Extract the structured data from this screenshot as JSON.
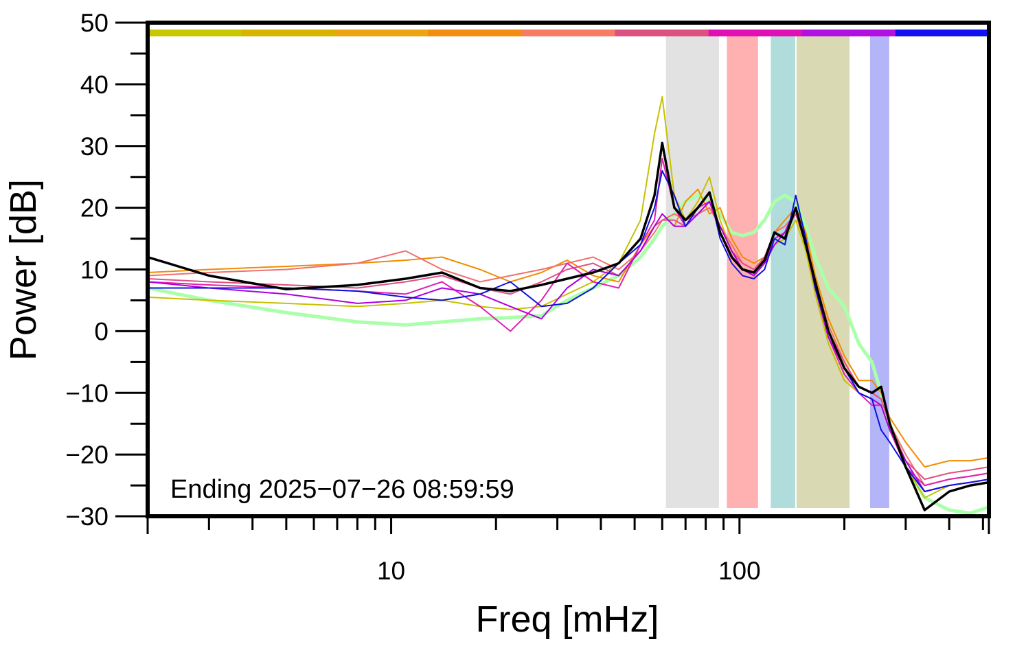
{
  "chart_data": {
    "type": "line",
    "xlabel": "Freq [mHz]",
    "ylabel": "Power [dB]",
    "annotation": "Ending 2025−07−26 08:59:59",
    "xscale": "log",
    "xlim": [
      2,
      520
    ],
    "ylim": [
      -30,
      50
    ],
    "xticks": [
      10,
      100
    ],
    "x_minor_ticks": [
      3,
      4,
      5,
      6,
      7,
      8,
      9,
      20,
      30,
      40,
      50,
      60,
      70,
      80,
      90,
      200,
      300,
      400,
      500
    ],
    "yticks": [
      {
        "value": -30,
        "label": "−30"
      },
      {
        "value": -20,
        "label": "−20"
      },
      {
        "value": -10,
        "label": "−10"
      },
      0,
      10,
      20,
      30,
      40,
      50
    ],
    "y_minor_ticks": [
      -25,
      -15,
      -5,
      5,
      15,
      25,
      35,
      45
    ],
    "top_bar_colors": [
      "#c8c800",
      "#d6b400",
      "#eea410",
      "#f48c10",
      "#f87c64",
      "#dc5082",
      "#e010b4",
      "#b010e0",
      "#1010f0"
    ],
    "bands": [
      {
        "range": [
          61.5,
          87.3
        ],
        "color": "#e2e2e2"
      },
      {
        "range": [
          92,
          113
        ],
        "color": "#ffb0b0"
      },
      {
        "range": [
          123,
          144.5
        ],
        "color": "#b0dcdc"
      },
      {
        "range": [
          145.8,
          207
        ],
        "color": "#d9d9b4"
      },
      {
        "range": [
          237,
          269
        ],
        "color": "#b4b4f8"
      }
    ],
    "x": [
      2,
      3,
      5,
      8,
      11,
      14,
      18,
      22,
      27,
      32,
      38,
      45,
      52,
      57,
      60,
      65,
      70,
      76,
      82,
      88,
      95,
      102,
      110,
      118,
      126,
      135,
      145,
      155,
      165,
      180,
      200,
      220,
      240,
      255,
      270,
      300,
      340,
      400,
      460,
      520
    ],
    "series": [
      {
        "color": "#aaffaa",
        "width": 5,
        "values": [
          7,
          5,
          3,
          1.5,
          1,
          1.5,
          2,
          2.2,
          2.5,
          5,
          7,
          9,
          12,
          15,
          17,
          19,
          21,
          22,
          21,
          19,
          16,
          15.5,
          16,
          18,
          21,
          22,
          21,
          17,
          12,
          7,
          4,
          -2,
          -5,
          -10,
          -15,
          -22,
          -27,
          -29,
          -29.5,
          -28.5
        ]
      },
      {
        "color": "#f08c00",
        "width": 2,
        "values": [
          9.5,
          10,
          10.5,
          11,
          11.5,
          12,
          10,
          8,
          9.5,
          11.5,
          9,
          8,
          14,
          17,
          19,
          17,
          21,
          23,
          19,
          20,
          15,
          12,
          11,
          12,
          16,
          18,
          20,
          16,
          9,
          2,
          -4,
          -8,
          -8,
          -10,
          -14,
          -18,
          -22,
          -21,
          -21,
          -20.5
        ]
      },
      {
        "color": "#c8c000",
        "width": 2,
        "values": [
          5.5,
          5,
          4.5,
          4,
          4.5,
          5,
          4,
          3.5,
          4,
          6,
          8,
          11,
          18,
          32,
          38,
          22,
          18,
          21,
          25,
          18,
          13,
          10,
          9,
          11,
          14,
          15,
          18,
          13,
          6,
          -2,
          -8,
          -10,
          -11,
          -12,
          -16,
          -22,
          -27,
          -25,
          -24.5,
          -24
        ]
      },
      {
        "color": "#f07070",
        "width": 2,
        "values": [
          9,
          9.5,
          10,
          11,
          13,
          10,
          8,
          9,
          10,
          11,
          12,
          10,
          13,
          16,
          18,
          19,
          18,
          19,
          20,
          17,
          14,
          11,
          10,
          12,
          16,
          17,
          19,
          15,
          8,
          1,
          -5,
          -9,
          -10,
          -11,
          -15,
          -20,
          -25,
          -24,
          -23.5,
          -23
        ]
      },
      {
        "color": "#e05080",
        "width": 2,
        "values": [
          8.5,
          8,
          7.5,
          7,
          8,
          9,
          7,
          6,
          8,
          10,
          11,
          9,
          13,
          17,
          18,
          18,
          17,
          19,
          21,
          17,
          13,
          11,
          10,
          12,
          15,
          16,
          19,
          14,
          8,
          0,
          -5,
          -9,
          -10,
          -11,
          -15,
          -21,
          -24,
          -23,
          -22.5,
          -22
        ]
      },
      {
        "color": "#e020b0",
        "width": 2,
        "values": [
          8,
          7.5,
          7,
          6.5,
          6,
          8,
          4,
          0,
          5,
          11,
          8,
          7,
          14,
          18,
          28,
          20,
          17,
          20,
          21,
          16,
          12,
          10,
          9,
          11,
          15,
          16,
          20,
          14,
          7,
          -1,
          -7,
          -10,
          -12,
          -12,
          -16,
          -22,
          -25,
          -24,
          -23.5,
          -23
        ]
      },
      {
        "color": "#b000e0",
        "width": 2,
        "values": [
          8,
          7,
          6,
          4.5,
          5,
          7,
          6,
          4,
          2,
          7,
          10,
          9,
          13,
          17,
          19,
          17,
          17,
          19,
          21,
          17,
          13,
          10,
          9,
          11,
          14,
          16,
          20,
          14,
          7,
          -1,
          -6,
          -10,
          -11,
          -12,
          -16,
          -21,
          -26,
          -25,
          -24.5,
          -24
        ]
      },
      {
        "color": "#1010e0",
        "width": 2,
        "values": [
          7,
          7,
          7,
          6.5,
          5.5,
          5,
          6,
          8,
          4,
          4.5,
          7,
          11,
          14,
          20,
          26,
          22,
          17,
          20,
          22.5,
          15,
          11,
          9,
          8.5,
          10,
          15,
          14,
          22,
          15,
          7,
          0,
          -6,
          -10,
          -11,
          -16,
          -18,
          -22,
          -26,
          -25,
          -24.5,
          -24
        ]
      },
      {
        "color": "#000000",
        "width": 3.5,
        "values": [
          12,
          9,
          6.8,
          7.5,
          8.5,
          9.5,
          7,
          6.5,
          7.5,
          8.5,
          9.5,
          11,
          15,
          22,
          30.5,
          20,
          18,
          20,
          22.5,
          16,
          12,
          10,
          9.5,
          11.5,
          16,
          15,
          20,
          14,
          8,
          0,
          -6,
          -9,
          -10,
          -9,
          -15,
          -22,
          -29,
          -26,
          -25,
          -24.5
        ]
      }
    ]
  }
}
